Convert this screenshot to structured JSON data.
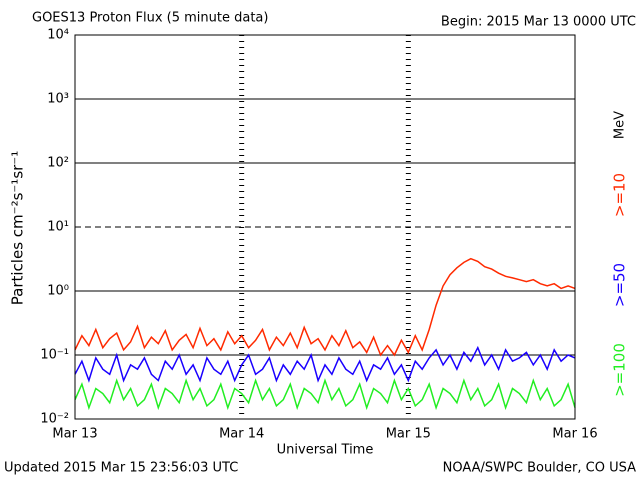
{
  "chart_data": {
    "type": "line",
    "title": "GOES13 Proton Flux (5 minute data)",
    "subtitle": "Begin: 2015 Mar 13 0000 UTC",
    "xlabel": "Universal Time",
    "ylabel": "Particles cm⁻²s⁻¹sr⁻¹",
    "unit_label": "MeV",
    "footer_left": "Updated 2015 Mar 15 23:56:03 UTC",
    "footer_right": "NOAA/SWPC Boulder, CO USA",
    "log_y": true,
    "grid": true,
    "threshold": 10,
    "xlim": [
      0,
      72
    ],
    "xticks": [
      {
        "value": 0,
        "label": "Mar 13"
      },
      {
        "value": 24,
        "label": "Mar 14"
      },
      {
        "value": 48,
        "label": "Mar 15"
      },
      {
        "value": 72,
        "label": "Mar 16"
      }
    ],
    "ylim": [
      0.01,
      10000
    ],
    "yticks": [
      {
        "value": 0.01,
        "label": "10⁻²"
      },
      {
        "value": 0.1,
        "label": "10⁻¹"
      },
      {
        "value": 1,
        "label": "10⁰"
      },
      {
        "value": 10,
        "label": "10¹"
      },
      {
        "value": 100,
        "label": "10²"
      },
      {
        "value": 1000,
        "label": "10³"
      },
      {
        "value": 10000,
        "label": "10⁴"
      }
    ],
    "x": [
      0,
      1,
      2,
      3,
      4,
      5,
      6,
      7,
      8,
      9,
      10,
      11,
      12,
      13,
      14,
      15,
      16,
      17,
      18,
      19,
      20,
      21,
      22,
      23,
      24,
      25,
      26,
      27,
      28,
      29,
      30,
      31,
      32,
      33,
      34,
      35,
      36,
      37,
      38,
      39,
      40,
      41,
      42,
      43,
      44,
      45,
      46,
      47,
      48,
      49,
      50,
      51,
      52,
      53,
      54,
      55,
      56,
      57,
      58,
      59,
      60,
      61,
      62,
      63,
      64,
      65,
      66,
      67,
      68,
      69,
      70,
      71,
      72
    ],
    "series": [
      {
        "name": ">=10",
        "color": "#ff2a00",
        "values": [
          0.12,
          0.2,
          0.14,
          0.25,
          0.13,
          0.18,
          0.22,
          0.12,
          0.16,
          0.28,
          0.13,
          0.19,
          0.15,
          0.24,
          0.12,
          0.17,
          0.21,
          0.13,
          0.26,
          0.14,
          0.18,
          0.12,
          0.23,
          0.15,
          0.2,
          0.13,
          0.17,
          0.25,
          0.12,
          0.19,
          0.14,
          0.22,
          0.13,
          0.27,
          0.15,
          0.18,
          0.12,
          0.2,
          0.14,
          0.24,
          0.13,
          0.16,
          0.11,
          0.19,
          0.1,
          0.14,
          0.1,
          0.17,
          0.11,
          0.2,
          0.12,
          0.25,
          0.6,
          1.2,
          1.8,
          2.3,
          2.8,
          3.2,
          2.9,
          2.4,
          2.2,
          1.9,
          1.7,
          1.6,
          1.5,
          1.4,
          1.5,
          1.3,
          1.2,
          1.3,
          1.1,
          1.2,
          1.1
        ]
      },
      {
        "name": ">=50",
        "color": "#1a00ff",
        "values": [
          0.05,
          0.08,
          0.04,
          0.09,
          0.06,
          0.05,
          0.1,
          0.04,
          0.07,
          0.06,
          0.09,
          0.05,
          0.04,
          0.08,
          0.06,
          0.1,
          0.05,
          0.07,
          0.04,
          0.09,
          0.06,
          0.05,
          0.08,
          0.04,
          0.07,
          0.1,
          0.05,
          0.06,
          0.09,
          0.04,
          0.07,
          0.05,
          0.08,
          0.06,
          0.1,
          0.04,
          0.07,
          0.05,
          0.09,
          0.06,
          0.05,
          0.08,
          0.04,
          0.07,
          0.06,
          0.09,
          0.05,
          0.07,
          0.04,
          0.08,
          0.06,
          0.09,
          0.12,
          0.07,
          0.1,
          0.06,
          0.11,
          0.08,
          0.13,
          0.07,
          0.1,
          0.06,
          0.12,
          0.08,
          0.09,
          0.11,
          0.07,
          0.1,
          0.06,
          0.12,
          0.08,
          0.1,
          0.09
        ]
      },
      {
        "name": ">=100",
        "color": "#22ee22",
        "values": [
          0.02,
          0.035,
          0.015,
          0.03,
          0.025,
          0.018,
          0.04,
          0.02,
          0.03,
          0.016,
          0.02,
          0.035,
          0.015,
          0.03,
          0.025,
          0.018,
          0.04,
          0.02,
          0.03,
          0.016,
          0.02,
          0.035,
          0.015,
          0.03,
          0.025,
          0.018,
          0.04,
          0.02,
          0.03,
          0.016,
          0.02,
          0.035,
          0.015,
          0.03,
          0.025,
          0.018,
          0.04,
          0.02,
          0.03,
          0.016,
          0.02,
          0.035,
          0.015,
          0.03,
          0.025,
          0.018,
          0.04,
          0.02,
          0.03,
          0.016,
          0.02,
          0.035,
          0.015,
          0.03,
          0.025,
          0.018,
          0.04,
          0.02,
          0.03,
          0.016,
          0.02,
          0.035,
          0.015,
          0.03,
          0.025,
          0.018,
          0.04,
          0.02,
          0.03,
          0.016,
          0.02,
          0.035,
          0.015
        ]
      }
    ]
  }
}
